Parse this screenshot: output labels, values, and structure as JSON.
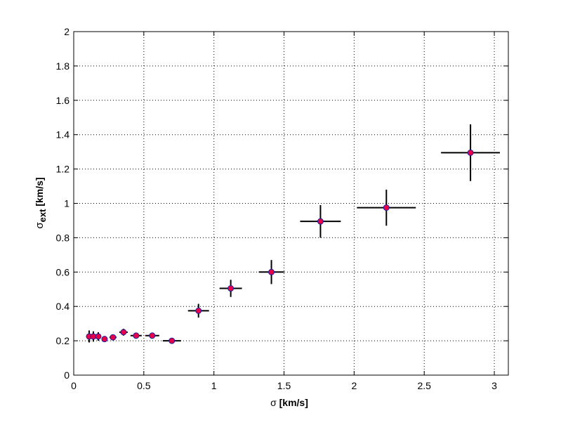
{
  "chart_data": {
    "type": "scatter",
    "xlabel_symbol": "σ",
    "xlabel_unit": " [km/s]",
    "ylabel_symbol": "σ",
    "ylabel_sub": "ext",
    "ylabel_unit": "  [km/s]",
    "xlim": [
      0,
      3.1
    ],
    "ylim": [
      0,
      2
    ],
    "xticks": [
      0,
      0.5,
      1,
      1.5,
      2,
      2.5,
      3
    ],
    "xtick_labels": [
      "0",
      "0.5",
      "1",
      "1.5",
      "2",
      "2.5",
      "3"
    ],
    "yticks": [
      0,
      0.2,
      0.4,
      0.6,
      0.8,
      1,
      1.2,
      1.4,
      1.6,
      1.8,
      2
    ],
    "ytick_labels": [
      "0",
      "0.2",
      "0.4",
      "0.6",
      "0.8",
      "1",
      "1.2",
      "1.4",
      "1.6",
      "1.8",
      "2"
    ],
    "grid": true,
    "marker_color": "#e8004a",
    "marker_edge_color": "#1f1f9c",
    "errorbar_color": "#000000",
    "points": [
      {
        "x": 0.11,
        "y": 0.225,
        "xerr": 0.01,
        "yerr": 0.035
      },
      {
        "x": 0.14,
        "y": 0.225,
        "xerr": 0.013,
        "yerr": 0.03
      },
      {
        "x": 0.175,
        "y": 0.225,
        "xerr": 0.016,
        "yerr": 0.025
      },
      {
        "x": 0.22,
        "y": 0.21,
        "xerr": 0.02,
        "yerr": 0.015
      },
      {
        "x": 0.28,
        "y": 0.22,
        "xerr": 0.025,
        "yerr": 0.015
      },
      {
        "x": 0.355,
        "y": 0.25,
        "xerr": 0.03,
        "yerr": 0.02
      },
      {
        "x": 0.445,
        "y": 0.23,
        "xerr": 0.04,
        "yerr": 0.015
      },
      {
        "x": 0.56,
        "y": 0.23,
        "xerr": 0.05,
        "yerr": 0.015
      },
      {
        "x": 0.7,
        "y": 0.2,
        "xerr": 0.065,
        "yerr": 0.01
      },
      {
        "x": 0.89,
        "y": 0.375,
        "xerr": 0.075,
        "yerr": 0.04
      },
      {
        "x": 1.12,
        "y": 0.505,
        "xerr": 0.08,
        "yerr": 0.05
      },
      {
        "x": 1.41,
        "y": 0.6,
        "xerr": 0.09,
        "yerr": 0.07
      },
      {
        "x": 1.76,
        "y": 0.895,
        "xerr": 0.145,
        "yerr": 0.095
      },
      {
        "x": 2.23,
        "y": 0.975,
        "xerr": 0.21,
        "yerr": 0.105
      },
      {
        "x": 2.83,
        "y": 1.295,
        "xerr": 0.21,
        "yerr": 0.165
      }
    ]
  }
}
